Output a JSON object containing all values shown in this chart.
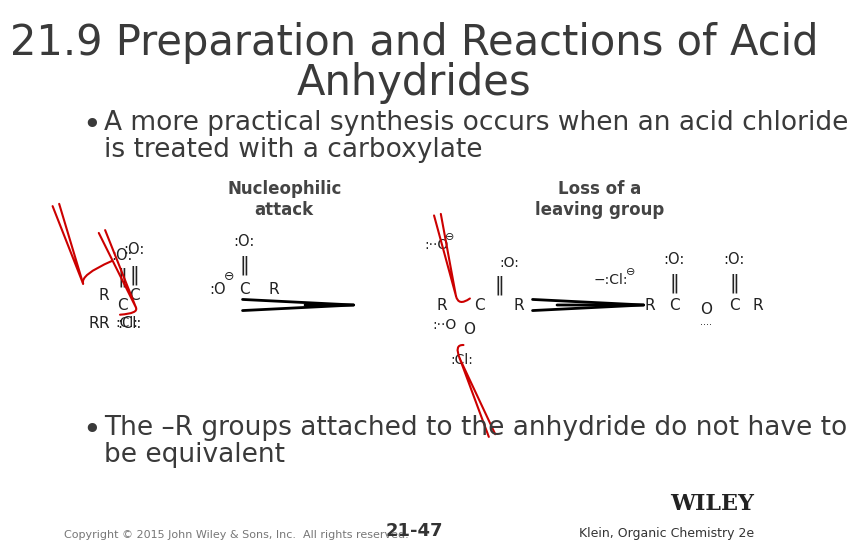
{
  "title_line1": "21.9 Preparation and Reactions of Acid",
  "title_line2": "Anhydrides",
  "title_fontsize": 30,
  "title_color": "#3a3a3a",
  "bullet1_line1": "A more practical synthesis occurs when an acid chloride",
  "bullet1_line2": "is treated with a carboxylate",
  "bullet2_line1": "The –R groups attached to the anhydride do not have to",
  "bullet2_line2": "be equivalent",
  "bullet_fontsize": 19,
  "bullet_color": "#3a3a3a",
  "nucleophilic_label": "Nucleophilic\nattack",
  "loss_label": "Loss of a\nleaving group",
  "label_fontsize": 12,
  "label_color": "#444444",
  "copyright_text": "Copyright © 2015 John Wiley & Sons, Inc.  All rights reserved.",
  "page_number": "21-47",
  "wiley_text": "WILEY",
  "klein_text": "Klein, Organic Chemistry 2e",
  "bg_color": "#ffffff",
  "text_color": "#333333",
  "red_color": "#cc0000",
  "struct_color": "#222222"
}
